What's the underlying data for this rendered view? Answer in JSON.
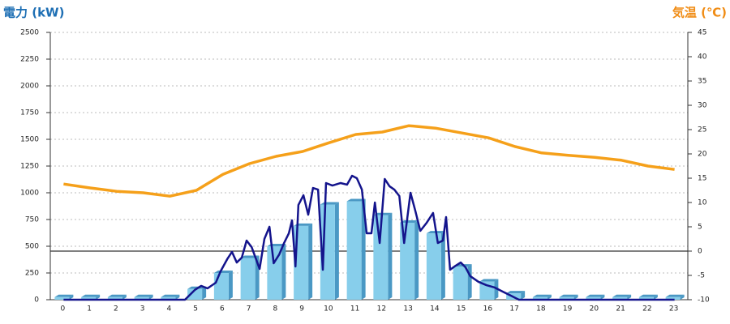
{
  "chart_data": {
    "type": "bar",
    "title": "電力 (kW)",
    "y2_title": "気温 (℃)",
    "categories": [
      "0",
      "1",
      "2",
      "3",
      "4",
      "5",
      "6",
      "7",
      "8",
      "9",
      "10",
      "11",
      "12",
      "13",
      "14",
      "15",
      "16",
      "17",
      "18",
      "19",
      "20",
      "21",
      "22",
      "23"
    ],
    "ylim": [
      0,
      2500
    ],
    "yticks": [
      0,
      250,
      500,
      750,
      1000,
      1250,
      1500,
      1750,
      2000,
      2250,
      2500
    ],
    "y2lim": [
      -10,
      45
    ],
    "y2ticks": [
      -10,
      -5,
      0,
      5,
      10,
      15,
      20,
      25,
      30,
      35,
      40,
      45
    ],
    "grid": true,
    "series": [
      {
        "type": "bar",
        "color": "#87ceeb",
        "side_color": "#4a98c4",
        "values": [
          25,
          25,
          25,
          25,
          25,
          100,
          250,
          390,
          500,
          690,
          890,
          920,
          790,
          720,
          620,
          310,
          170,
          60,
          25,
          25,
          25,
          25,
          25,
          25
        ]
      },
      {
        "type": "line",
        "color": "#14148c",
        "x": [
          0,
          4.57,
          4.94,
          5.18,
          5.42,
          5.73,
          5.91,
          6.16,
          6.34,
          6.52,
          6.71,
          6.89,
          7.08,
          7.38,
          7.56,
          7.75,
          7.91,
          8.12,
          8.3,
          8.48,
          8.6,
          8.73,
          8.84,
          9.03,
          9.21,
          9.39,
          9.58,
          9.76,
          9.88,
          10.12,
          10.43,
          10.67,
          10.86,
          11.04,
          11.23,
          11.41,
          11.59,
          11.72,
          11.9,
          12.09,
          12.27,
          12.45,
          12.64,
          12.82,
          13.06,
          13.24,
          13.43,
          13.67,
          13.91,
          14.09,
          14.28,
          14.4,
          14.55,
          14.76,
          14.95,
          15.13,
          15.31,
          15.62,
          15.92,
          16.23,
          16.53,
          16.84,
          17.14,
          23
        ],
        "values": [
          0,
          0,
          91,
          129,
          106,
          159,
          265,
          379,
          447,
          348,
          394,
          553,
          492,
          288,
          568,
          682,
          341,
          424,
          530,
          621,
          742,
          311,
          886,
          977,
          795,
          1045,
          1030,
          280,
          1091,
          1068,
          1091,
          1076,
          1159,
          1136,
          1030,
          621,
          621,
          909,
          530,
          1129,
          1061,
          1030,
          970,
          530,
          1000,
          833,
          644,
          720,
          811,
          530,
          553,
          773,
          280,
          318,
          348,
          303,
          220,
          167,
          136,
          114,
          76,
          38,
          0,
          0
        ]
      },
      {
        "type": "line",
        "axis": "y2",
        "color": "#f5a01a",
        "values": [
          13.8,
          13,
          12.3,
          12,
          11.3,
          12.5,
          15.8,
          18,
          19.5,
          20.5,
          22.3,
          24,
          24.5,
          25.8,
          25.3,
          24.3,
          23.3,
          21.5,
          20.2,
          19.7,
          19.3,
          18.7,
          17.5,
          16.8
        ]
      }
    ]
  }
}
